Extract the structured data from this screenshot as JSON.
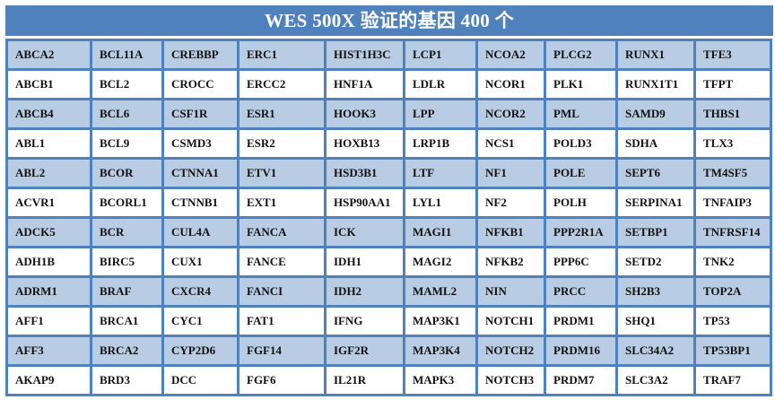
{
  "title": "WES 500X  验证的基因  400 个",
  "colors": {
    "header": "#4f81bd",
    "band": "#b8cce4",
    "border": "#4f81bd"
  },
  "rows": [
    [
      "ABCA2",
      "BCL11A",
      "CREBBP",
      "ERC1",
      "HIST1H3C",
      "LCP1",
      "NCOA2",
      "PLCG2",
      "RUNX1",
      "TFE3"
    ],
    [
      "ABCB1",
      "BCL2",
      "CROCC",
      "ERCC2",
      "HNF1A",
      "LDLR",
      "NCOR1",
      "PLK1",
      "RUNX1T1",
      "TFPT"
    ],
    [
      "ABCB4",
      "BCL6",
      "CSF1R",
      "ESR1",
      "HOOK3",
      "LPP",
      "NCOR2",
      "PML",
      "SAMD9",
      "THBS1"
    ],
    [
      "ABL1",
      "BCL9",
      "CSMD3",
      "ESR2",
      "HOXB13",
      "LRP1B",
      "NCS1",
      "POLD3",
      "SDHA",
      "TLX3"
    ],
    [
      "ABL2",
      "BCOR",
      "CTNNA1",
      "ETV1",
      "HSD3B1",
      "LTF",
      "NF1",
      "POLE",
      "SEPT6",
      "TM4SF5"
    ],
    [
      "ACVR1",
      "BCORL1",
      "CTNNB1",
      "EXT1",
      "HSP90AA1",
      "LYL1",
      "NF2",
      "POLH",
      "SERPINA1",
      "TNFAIP3"
    ],
    [
      "ADCK5",
      "BCR",
      "CUL4A",
      "FANCA",
      "ICK",
      "MAGI1",
      "NFKB1",
      "PPP2R1A",
      "SETBP1",
      "TNFRSF14"
    ],
    [
      "ADH1B",
      "BIRC5",
      "CUX1",
      "FANCE",
      "IDH1",
      "MAGI2",
      "NFKB2",
      "PPP6C",
      "SETD2",
      "TNK2"
    ],
    [
      "ADRM1",
      "BRAF",
      "CXCR4",
      "FANCI",
      "IDH2",
      "MAML2",
      "NIN",
      "PRCC",
      "SH2B3",
      "TOP2A"
    ],
    [
      "AFF1",
      "BRCA1",
      "CYC1",
      "FAT1",
      "IFNG",
      "MAP3K1",
      "NOTCH1",
      "PRDM1",
      "SHQ1",
      "TP53"
    ],
    [
      "AFF3",
      "BRCA2",
      "CYP2D6",
      "FGF14",
      "IGF2R",
      "MAP3K4",
      "NOTCH2",
      "PRDM16",
      "SLC34A2",
      "TP53BP1"
    ],
    [
      "AKAP9",
      "BRD3",
      "DCC",
      "FGF6",
      "IL21R",
      "MAPK3",
      "NOTCH3",
      "PRDM7",
      "SLC3A2",
      "TRAF7"
    ]
  ]
}
